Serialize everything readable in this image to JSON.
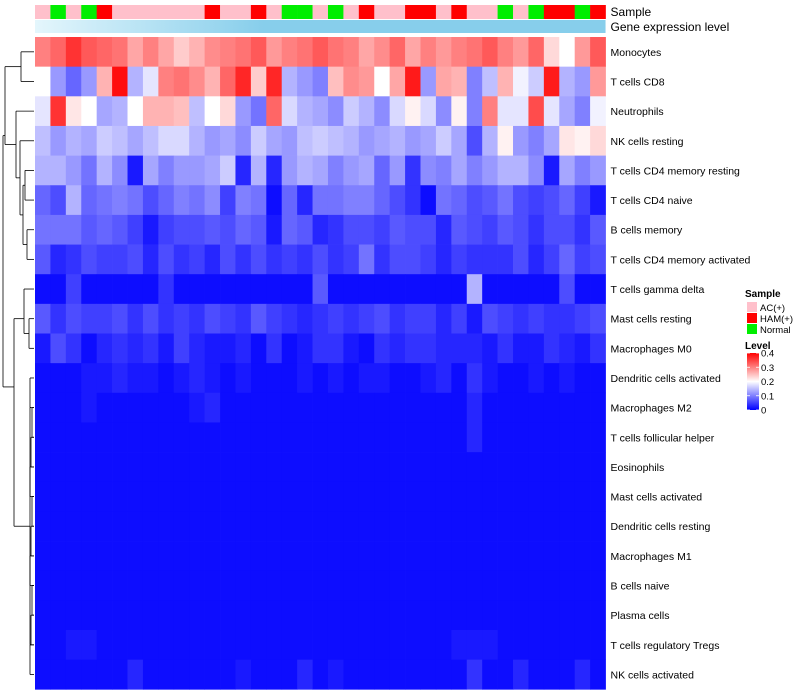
{
  "chart_data": {
    "type": "heatmap",
    "annotations": {
      "sample_label": "Sample",
      "expression_label": "Gene expression level"
    },
    "sample_legend": {
      "title": "Sample",
      "groups": [
        {
          "name": "AC(+)",
          "color": "#ffc0cb"
        },
        {
          "name": "HAM(+)",
          "color": "#ff0000"
        },
        {
          "name": "Normal",
          "color": "#00ee00"
        }
      ]
    },
    "level_legend": {
      "title": "Level",
      "ticks": [
        0.4,
        0.3,
        0.2,
        0.1,
        0
      ],
      "tick_labels": [
        "0.4",
        "0.3",
        "0.2",
        "0.1",
        "0"
      ],
      "range": [
        0,
        0.4
      ],
      "colors": {
        "low": "#0000ff",
        "mid": "#ffffff",
        "high": "#ff0000"
      }
    },
    "expression_bar_color": "#87ceeb",
    "samples": [
      "AC(+)",
      "Normal",
      "AC(+)",
      "Normal",
      "HAM(+)",
      "AC(+)",
      "AC(+)",
      "AC(+)",
      "AC(+)",
      "AC(+)",
      "AC(+)",
      "HAM(+)",
      "AC(+)",
      "AC(+)",
      "HAM(+)",
      "AC(+)",
      "Normal",
      "Normal",
      "AC(+)",
      "Normal",
      "AC(+)",
      "HAM(+)",
      "AC(+)",
      "AC(+)",
      "HAM(+)",
      "HAM(+)",
      "AC(+)",
      "HAM(+)",
      "AC(+)",
      "AC(+)",
      "Normal",
      "AC(+)",
      "Normal",
      "HAM(+)",
      "HAM(+)",
      "Normal",
      "HAM(+)"
    ],
    "rows": [
      "Monocytes",
      "T cells CD8",
      "Neutrophils",
      "NK cells resting",
      "T cells CD4 memory resting",
      "T cells CD4 naive",
      "B cells memory",
      "T cells CD4 memory activated",
      "T cells gamma delta",
      "Mast cells resting",
      "Macrophages M0",
      "Dendritic cells activated",
      "Macrophages M2",
      "T cells follicular helper",
      "Eosinophils",
      "Mast cells activated",
      "Dendritic cells resting",
      "Macrophages M1",
      "B cells naive",
      "Plasma cells",
      "T cells regulatory  Tregs",
      "NK cells activated"
    ],
    "values": [
      [
        0.3,
        0.32,
        0.36,
        0.33,
        0.32,
        0.31,
        0.27,
        0.3,
        0.27,
        0.24,
        0.26,
        0.29,
        0.3,
        0.31,
        0.33,
        0.28,
        0.3,
        0.31,
        0.33,
        0.31,
        0.3,
        0.27,
        0.29,
        0.32,
        0.27,
        0.3,
        0.28,
        0.3,
        0.31,
        0.33,
        0.3,
        0.28,
        0.32,
        0.23,
        0.2,
        0.28,
        0.33
      ],
      [
        0.2,
        0.12,
        0.08,
        0.12,
        0.26,
        0.39,
        0.14,
        0.18,
        0.3,
        0.31,
        0.29,
        0.26,
        0.32,
        0.37,
        0.24,
        0.37,
        0.14,
        0.12,
        0.1,
        0.25,
        0.29,
        0.28,
        0.2,
        0.27,
        0.38,
        0.12,
        0.27,
        0.26,
        0.1,
        0.15,
        0.26,
        0.19,
        0.16,
        0.38,
        0.14,
        0.12,
        0.28
      ],
      [
        0.18,
        0.36,
        0.22,
        0.2,
        0.13,
        0.14,
        0.2,
        0.26,
        0.26,
        0.25,
        0.15,
        0.2,
        0.23,
        0.12,
        0.09,
        0.32,
        0.17,
        0.14,
        0.13,
        0.11,
        0.16,
        0.14,
        0.11,
        0.17,
        0.21,
        0.17,
        0.11,
        0.21,
        0.1,
        0.3,
        0.18,
        0.18,
        0.34,
        0.18,
        0.13,
        0.1,
        0.19
      ],
      [
        0.15,
        0.12,
        0.14,
        0.13,
        0.16,
        0.15,
        0.13,
        0.15,
        0.17,
        0.17,
        0.14,
        0.12,
        0.13,
        0.11,
        0.16,
        0.13,
        0.12,
        0.15,
        0.16,
        0.15,
        0.14,
        0.12,
        0.13,
        0.14,
        0.12,
        0.13,
        0.16,
        0.13,
        0.06,
        0.14,
        0.21,
        0.12,
        0.1,
        0.13,
        0.22,
        0.21,
        0.23
      ],
      [
        0.14,
        0.14,
        0.12,
        0.09,
        0.14,
        0.11,
        0.02,
        0.13,
        0.1,
        0.12,
        0.12,
        0.13,
        0.16,
        0.03,
        0.14,
        0.03,
        0.12,
        0.14,
        0.13,
        0.1,
        0.12,
        0.13,
        0.08,
        0.12,
        0.04,
        0.11,
        0.1,
        0.13,
        0.1,
        0.12,
        0.14,
        0.14,
        0.11,
        0.02,
        0.13,
        0.1,
        0.12
      ],
      [
        0.08,
        0.06,
        0.14,
        0.08,
        0.09,
        0.1,
        0.09,
        0.06,
        0.08,
        0.1,
        0.09,
        0.11,
        0.05,
        0.1,
        0.09,
        0.01,
        0.08,
        0.03,
        0.09,
        0.09,
        0.1,
        0.1,
        0.08,
        0.06,
        0.04,
        0.01,
        0.09,
        0.08,
        0.06,
        0.07,
        0.09,
        0.06,
        0.05,
        0.06,
        0.08,
        0.05,
        0.02
      ],
      [
        0.09,
        0.09,
        0.09,
        0.07,
        0.08,
        0.07,
        0.05,
        0.02,
        0.05,
        0.06,
        0.06,
        0.07,
        0.06,
        0.08,
        0.07,
        0.02,
        0.08,
        0.07,
        0.03,
        0.04,
        0.06,
        0.06,
        0.05,
        0.07,
        0.06,
        0.06,
        0.03,
        0.07,
        0.06,
        0.05,
        0.07,
        0.06,
        0.04,
        0.06,
        0.06,
        0.04,
        0.07
      ],
      [
        0.07,
        0.03,
        0.04,
        0.06,
        0.05,
        0.05,
        0.06,
        0.03,
        0.06,
        0.04,
        0.05,
        0.03,
        0.06,
        0.04,
        0.06,
        0.04,
        0.05,
        0.04,
        0.06,
        0.04,
        0.05,
        0.09,
        0.04,
        0.06,
        0.06,
        0.05,
        0.03,
        0.05,
        0.04,
        0.04,
        0.04,
        0.06,
        0.03,
        0.05,
        0.08,
        0.05,
        0.06
      ],
      [
        0.01,
        0.01,
        0.05,
        0.01,
        0.01,
        0.01,
        0.01,
        0.01,
        0.04,
        0.01,
        0.01,
        0.01,
        0.01,
        0.01,
        0.01,
        0.01,
        0.01,
        0.01,
        0.07,
        0.01,
        0.01,
        0.01,
        0.01,
        0.01,
        0.01,
        0.01,
        0.01,
        0.01,
        0.14,
        0.01,
        0.01,
        0.01,
        0.01,
        0.01,
        0.06,
        0.01,
        0.01
      ],
      [
        0.07,
        0.04,
        0.06,
        0.05,
        0.05,
        0.06,
        0.04,
        0.06,
        0.04,
        0.05,
        0.04,
        0.06,
        0.05,
        0.04,
        0.07,
        0.05,
        0.04,
        0.03,
        0.04,
        0.05,
        0.04,
        0.05,
        0.06,
        0.04,
        0.05,
        0.05,
        0.03,
        0.05,
        0.02,
        0.06,
        0.05,
        0.04,
        0.05,
        0.04,
        0.04,
        0.05,
        0.06
      ],
      [
        0.02,
        0.06,
        0.04,
        0.01,
        0.03,
        0.04,
        0.03,
        0.04,
        0.02,
        0.05,
        0.03,
        0.02,
        0.02,
        0.03,
        0.01,
        0.04,
        0.01,
        0.02,
        0.04,
        0.04,
        0.02,
        0.01,
        0.04,
        0.03,
        0.04,
        0.04,
        0.03,
        0.03,
        0.03,
        0.02,
        0.04,
        0.02,
        0.02,
        0.04,
        0.03,
        0.02,
        0.04
      ],
      [
        0.01,
        0.01,
        0.01,
        0.02,
        0.02,
        0.03,
        0.02,
        0.02,
        0.01,
        0.02,
        0.03,
        0.02,
        0.01,
        0.02,
        0.01,
        0.01,
        0.01,
        0.02,
        0.01,
        0.02,
        0.01,
        0.02,
        0.02,
        0.01,
        0.01,
        0.02,
        0.03,
        0.01,
        0.04,
        0.02,
        0.01,
        0.01,
        0.02,
        0.01,
        0.02,
        0.01,
        0.01
      ],
      [
        0.01,
        0.01,
        0.01,
        0.02,
        0.01,
        0.01,
        0.01,
        0.01,
        0.01,
        0.01,
        0.02,
        0.03,
        0.01,
        0.01,
        0.01,
        0.01,
        0.01,
        0.01,
        0.01,
        0.01,
        0.01,
        0.01,
        0.01,
        0.01,
        0.01,
        0.01,
        0.01,
        0.01,
        0.03,
        0.01,
        0.01,
        0.01,
        0.01,
        0.01,
        0.01,
        0.01,
        0.01
      ],
      [
        0.01,
        0.01,
        0.01,
        0.01,
        0.01,
        0.01,
        0.01,
        0.01,
        0.01,
        0.01,
        0.01,
        0.01,
        0.01,
        0.01,
        0.01,
        0.01,
        0.01,
        0.01,
        0.01,
        0.01,
        0.01,
        0.01,
        0.01,
        0.01,
        0.01,
        0.01,
        0.01,
        0.01,
        0.03,
        0.01,
        0.01,
        0.01,
        0.01,
        0.01,
        0.01,
        0.01,
        0.01
      ],
      [
        0.01,
        0.01,
        0.01,
        0.01,
        0.01,
        0.01,
        0.01,
        0.01,
        0.01,
        0.01,
        0.01,
        0.01,
        0.01,
        0.01,
        0.01,
        0.01,
        0.01,
        0.01,
        0.01,
        0.01,
        0.01,
        0.01,
        0.01,
        0.01,
        0.01,
        0.01,
        0.01,
        0.01,
        0.01,
        0.01,
        0.01,
        0.01,
        0.01,
        0.01,
        0.01,
        0.01,
        0.01
      ],
      [
        0.01,
        0.01,
        0.01,
        0.01,
        0.01,
        0.01,
        0.01,
        0.01,
        0.01,
        0.01,
        0.01,
        0.01,
        0.01,
        0.01,
        0.01,
        0.01,
        0.01,
        0.01,
        0.01,
        0.01,
        0.01,
        0.01,
        0.01,
        0.01,
        0.01,
        0.01,
        0.01,
        0.01,
        0.01,
        0.01,
        0.01,
        0.01,
        0.01,
        0.01,
        0.01,
        0.01,
        0.01
      ],
      [
        0.01,
        0.01,
        0.01,
        0.01,
        0.01,
        0.01,
        0.01,
        0.01,
        0.01,
        0.01,
        0.01,
        0.01,
        0.01,
        0.01,
        0.01,
        0.01,
        0.01,
        0.01,
        0.01,
        0.01,
        0.01,
        0.01,
        0.01,
        0.01,
        0.01,
        0.01,
        0.01,
        0.01,
        0.01,
        0.01,
        0.01,
        0.01,
        0.01,
        0.01,
        0.01,
        0.01,
        0.01
      ],
      [
        0.01,
        0.01,
        0.01,
        0.01,
        0.01,
        0.01,
        0.01,
        0.01,
        0.01,
        0.01,
        0.01,
        0.01,
        0.01,
        0.01,
        0.01,
        0.01,
        0.01,
        0.01,
        0.01,
        0.01,
        0.01,
        0.01,
        0.01,
        0.01,
        0.01,
        0.01,
        0.01,
        0.01,
        0.01,
        0.01,
        0.01,
        0.01,
        0.01,
        0.01,
        0.01,
        0.01,
        0.01
      ],
      [
        0.01,
        0.01,
        0.01,
        0.01,
        0.01,
        0.01,
        0.01,
        0.01,
        0.01,
        0.01,
        0.01,
        0.01,
        0.01,
        0.01,
        0.01,
        0.01,
        0.01,
        0.01,
        0.01,
        0.01,
        0.01,
        0.01,
        0.01,
        0.01,
        0.01,
        0.01,
        0.01,
        0.01,
        0.01,
        0.01,
        0.01,
        0.01,
        0.01,
        0.01,
        0.01,
        0.01,
        0.01
      ],
      [
        0.01,
        0.01,
        0.01,
        0.01,
        0.01,
        0.01,
        0.01,
        0.01,
        0.01,
        0.01,
        0.01,
        0.01,
        0.01,
        0.01,
        0.01,
        0.01,
        0.01,
        0.01,
        0.01,
        0.01,
        0.01,
        0.01,
        0.01,
        0.01,
        0.01,
        0.01,
        0.01,
        0.01,
        0.01,
        0.01,
        0.01,
        0.01,
        0.01,
        0.01,
        0.01,
        0.01,
        0.01
      ],
      [
        0.01,
        0.01,
        0.02,
        0.02,
        0.01,
        0.01,
        0.01,
        0.01,
        0.01,
        0.01,
        0.01,
        0.01,
        0.01,
        0.01,
        0.01,
        0.01,
        0.01,
        0.01,
        0.01,
        0.01,
        0.01,
        0.01,
        0.01,
        0.01,
        0.01,
        0.01,
        0.01,
        0.02,
        0.02,
        0.02,
        0.01,
        0.01,
        0.01,
        0.01,
        0.01,
        0.01,
        0.01
      ],
      [
        0.01,
        0.01,
        0.01,
        0.01,
        0.01,
        0.01,
        0.03,
        0.01,
        0.01,
        0.01,
        0.01,
        0.01,
        0.01,
        0.02,
        0.01,
        0.01,
        0.01,
        0.03,
        0.01,
        0.02,
        0.01,
        0.01,
        0.01,
        0.01,
        0.01,
        0.01,
        0.01,
        0.01,
        0.04,
        0.01,
        0.01,
        0.03,
        0.01,
        0.01,
        0.01,
        0.03,
        0.01
      ]
    ]
  }
}
